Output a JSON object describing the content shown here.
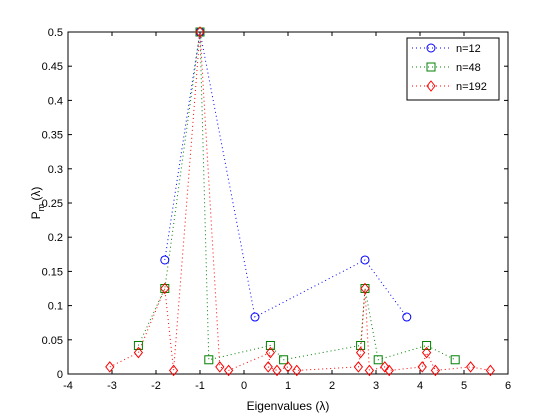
{
  "chart_data": {
    "type": "line",
    "title": "",
    "xlabel": "Eigenvalues (λ)",
    "ylabel": {
      "main": "P",
      "sub": "m",
      "rest": " (λ)"
    },
    "xlim": [
      -4,
      6
    ],
    "ylim": [
      0,
      0.5
    ],
    "xticks": [
      -4,
      -3,
      -2,
      -1,
      0,
      1,
      2,
      3,
      4,
      5,
      6
    ],
    "yticks": [
      0,
      0.05,
      0.1,
      0.15,
      0.2,
      0.25,
      0.3,
      0.35,
      0.4,
      0.45,
      0.5
    ],
    "grid": false,
    "legend_position": "top-right",
    "line_style": "dotted",
    "series": [
      {
        "name": "n=12",
        "color": "#0000ff",
        "marker": "circle",
        "points": [
          [
            -1.8,
            0.1667
          ],
          [
            -1.0,
            0.5
          ],
          [
            0.25,
            0.0833
          ],
          [
            2.75,
            0.1667
          ],
          [
            3.7,
            0.0833
          ]
        ]
      },
      {
        "name": "n=48",
        "color": "#008000",
        "marker": "square",
        "points": [
          [
            -2.4,
            0.0417
          ],
          [
            -1.8,
            0.125
          ],
          [
            -1.0,
            0.5
          ],
          [
            -0.8,
            0.0208
          ],
          [
            0.6,
            0.0417
          ],
          [
            0.9,
            0.0208
          ],
          [
            2.65,
            0.0417
          ],
          [
            2.75,
            0.125
          ],
          [
            3.05,
            0.0208
          ],
          [
            4.15,
            0.0417
          ],
          [
            4.8,
            0.0208
          ]
        ]
      },
      {
        "name": "n=192",
        "color": "#ff0000",
        "marker": "diamond",
        "points": [
          [
            -3.05,
            0.0104
          ],
          [
            -2.4,
            0.0313
          ],
          [
            -1.8,
            0.125
          ],
          [
            -1.6,
            0.0052
          ],
          [
            -1.0,
            0.5
          ],
          [
            -0.55,
            0.0104
          ],
          [
            -0.35,
            0.0052
          ],
          [
            0.6,
            0.0313
          ],
          [
            0.55,
            0.0104
          ],
          [
            0.75,
            0.0052
          ],
          [
            1.0,
            0.0104
          ],
          [
            1.2,
            0.0052
          ],
          [
            2.6,
            0.0104
          ],
          [
            2.65,
            0.0313
          ],
          [
            2.75,
            0.125
          ],
          [
            2.85,
            0.0052
          ],
          [
            3.2,
            0.0104
          ],
          [
            3.3,
            0.0052
          ],
          [
            4.05,
            0.0104
          ],
          [
            4.15,
            0.0313
          ],
          [
            4.35,
            0.0052
          ],
          [
            5.15,
            0.0104
          ],
          [
            5.6,
            0.0052
          ]
        ]
      }
    ]
  }
}
